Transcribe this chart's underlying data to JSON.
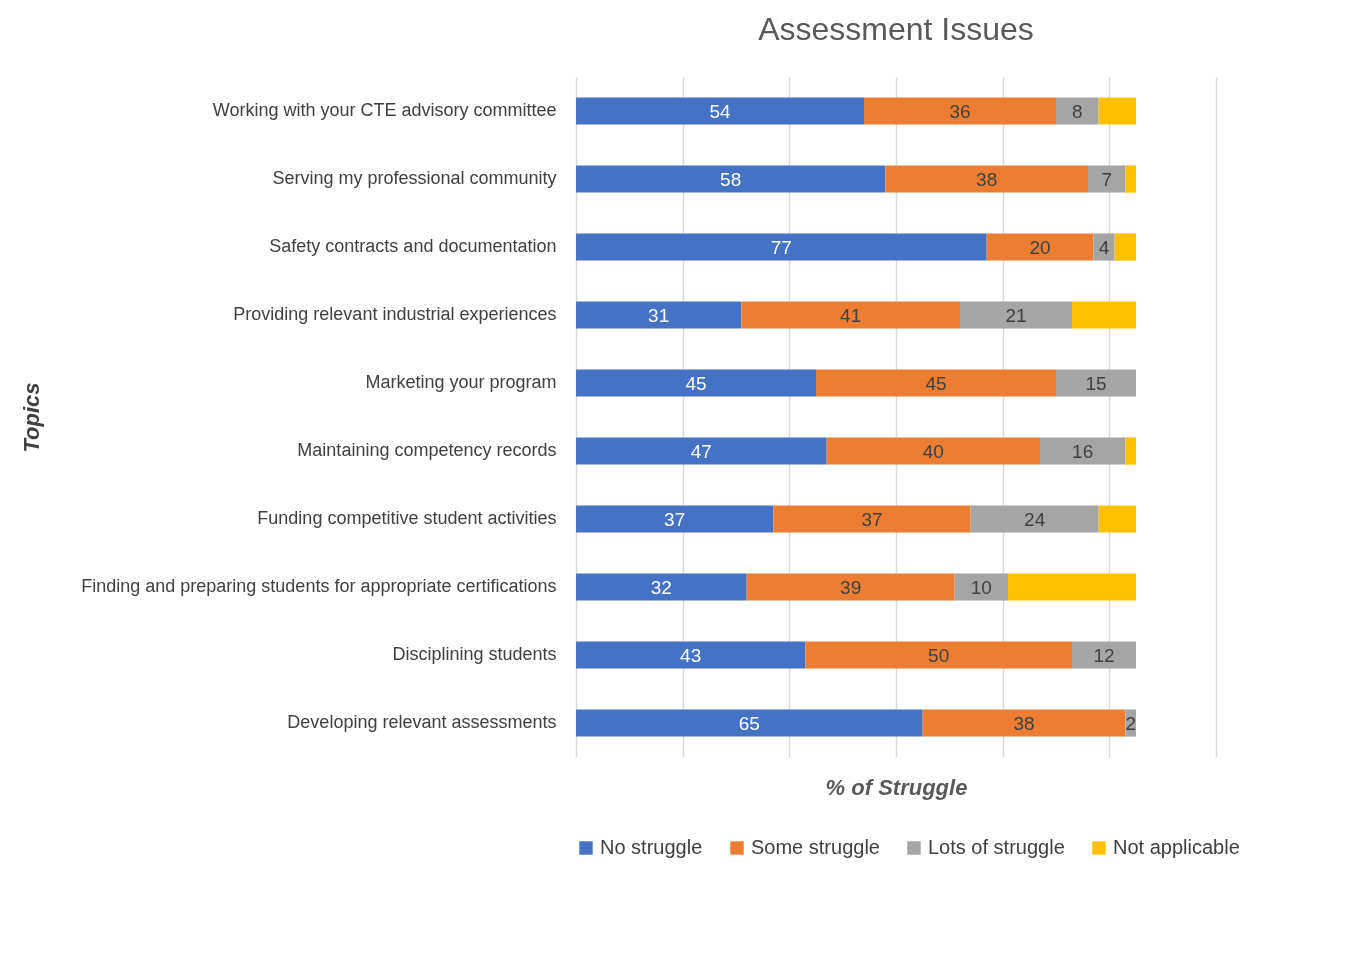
{
  "chart_data": {
    "type": "bar",
    "orientation": "horizontal",
    "stacked": true,
    "title": "Assessment Issues",
    "xlabel": "% of Struggle",
    "ylabel": "Topics",
    "categories": [
      "Working with your CTE advisory committee",
      "Serving my professional community",
      "Safety contracts and documentation",
      "Providing relevant industrial experiences",
      "Marketing your program",
      "Maintaining competency records",
      "Funding competitive student activities",
      "Finding and preparing students for appropriate certifications",
      "Disciplining students",
      "Developing relevant assessments"
    ],
    "series": [
      {
        "name": "No struggle",
        "color": "#4472c4",
        "values": [
          54,
          58,
          77,
          31,
          45,
          47,
          37,
          32,
          43,
          65
        ],
        "value_labels": [
          "54",
          "58",
          "77",
          "31",
          "45",
          "47",
          "37",
          "32",
          "43",
          "65"
        ]
      },
      {
        "name": "Some struggle",
        "color": "#ed7d31",
        "values": [
          36,
          38,
          20,
          41,
          45,
          40,
          37,
          39,
          50,
          38
        ],
        "value_labels": [
          "36",
          "38",
          "20",
          "41",
          "45",
          "40",
          "37",
          "39",
          "50",
          "38"
        ]
      },
      {
        "name": "Lots of struggle",
        "color": "#a5a5a5",
        "values": [
          8,
          7,
          4,
          21,
          15,
          16,
          24,
          10,
          12,
          2
        ],
        "value_labels": [
          "8",
          "7",
          "4",
          "21",
          "15",
          "16",
          "24",
          "10",
          "12",
          "2"
        ]
      },
      {
        "name": "Not applicable",
        "color": "#ffc000",
        "values": [
          7,
          2,
          4,
          12,
          null,
          2,
          7,
          24,
          null,
          null
        ],
        "value_labels": [
          null,
          null,
          null,
          null,
          null,
          null,
          null,
          null,
          null,
          null
        ]
      }
    ],
    "xlim": [
      0,
      120
    ],
    "xticks": [
      {
        "value": 0,
        "label": null
      },
      {
        "value": 20,
        "label": null
      },
      {
        "value": 40,
        "label": null
      },
      {
        "value": 60,
        "label": null
      },
      {
        "value": 80,
        "label": null
      },
      {
        "value": 100,
        "label": null
      },
      {
        "value": 120,
        "label": null
      }
    ],
    "tick_labels": "y",
    "grid": "x",
    "legend": "bottom"
  }
}
